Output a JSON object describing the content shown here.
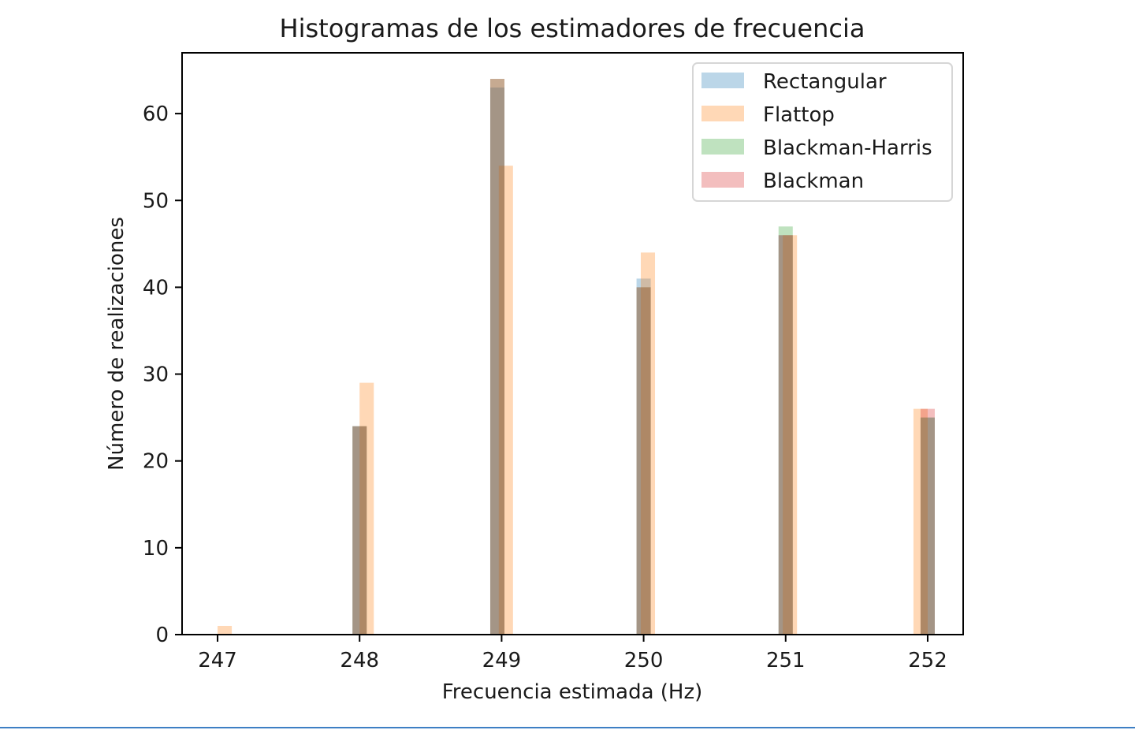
{
  "chart_data": {
    "type": "bar",
    "title": "Histogramas de los estimadores de frecuencia",
    "xlabel": "Frecuencia estimada (Hz)",
    "ylabel": "Número de realizaciones",
    "xlim": [
      246.75,
      252.25
    ],
    "ylim": [
      0,
      67
    ],
    "xticks": [
      247,
      248,
      249,
      250,
      251,
      252
    ],
    "yticks": [
      0,
      10,
      20,
      30,
      40,
      50,
      60
    ],
    "grid": false,
    "legend_position": "top-right",
    "series": [
      {
        "name": "Rectangular",
        "color": "#1f77b4",
        "opacity": 0.3,
        "bins": [
          {
            "x0": 247.95,
            "x1": 248.05,
            "count": 24
          },
          {
            "x0": 248.92,
            "x1": 249.02,
            "count": 63
          },
          {
            "x0": 249.95,
            "x1": 250.05,
            "count": 41
          },
          {
            "x0": 250.95,
            "x1": 251.05,
            "count": 46
          },
          {
            "x0": 251.95,
            "x1": 252.05,
            "count": 25
          }
        ]
      },
      {
        "name": "Flattop",
        "color": "#ff7f0e",
        "opacity": 0.3,
        "bins": [
          {
            "x0": 247.0,
            "x1": 247.1,
            "count": 1
          },
          {
            "x0": 248.0,
            "x1": 248.1,
            "count": 29
          },
          {
            "x0": 248.98,
            "x1": 249.08,
            "count": 54
          },
          {
            "x0": 249.98,
            "x1": 250.08,
            "count": 44
          },
          {
            "x0": 250.98,
            "x1": 251.08,
            "count": 46
          },
          {
            "x0": 251.9,
            "x1": 252.0,
            "count": 26
          }
        ]
      },
      {
        "name": "Blackman-Harris",
        "color": "#2ca02c",
        "opacity": 0.3,
        "bins": [
          {
            "x0": 247.95,
            "x1": 248.05,
            "count": 24
          },
          {
            "x0": 248.92,
            "x1": 249.02,
            "count": 64
          },
          {
            "x0": 249.95,
            "x1": 250.05,
            "count": 40
          },
          {
            "x0": 250.95,
            "x1": 251.05,
            "count": 47
          },
          {
            "x0": 251.95,
            "x1": 252.05,
            "count": 25
          }
        ]
      },
      {
        "name": "Blackman",
        "color": "#d62728",
        "opacity": 0.3,
        "bins": [
          {
            "x0": 247.95,
            "x1": 248.05,
            "count": 24
          },
          {
            "x0": 248.92,
            "x1": 249.02,
            "count": 64
          },
          {
            "x0": 249.95,
            "x1": 250.05,
            "count": 40
          },
          {
            "x0": 250.95,
            "x1": 251.05,
            "count": 46
          },
          {
            "x0": 251.95,
            "x1": 252.05,
            "count": 26
          }
        ]
      }
    ]
  }
}
